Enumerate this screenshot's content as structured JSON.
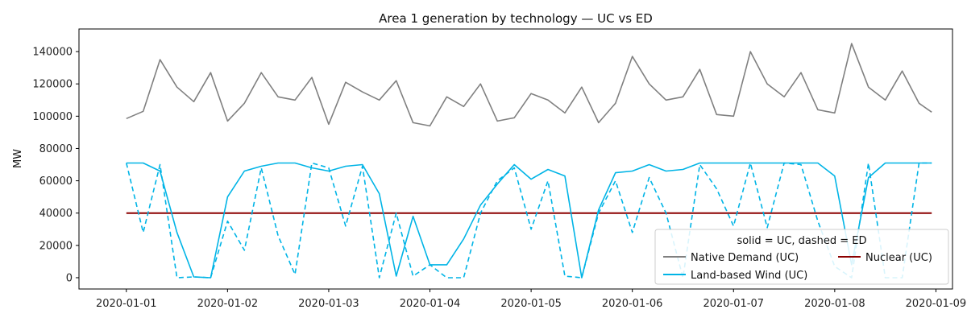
{
  "chart_data": {
    "type": "line",
    "title": "Area 1 generation by technology — UC vs ED",
    "xlabel": "",
    "ylabel": "MW",
    "ylim": [
      -7000,
      154000
    ],
    "xlim": [
      "2020-01-01",
      "2020-01-09"
    ],
    "yticks": [
      0,
      20000,
      40000,
      60000,
      80000,
      100000,
      120000,
      140000
    ],
    "yticklabels": [
      "0",
      "20000",
      "40000",
      "60000",
      "80000",
      "100000",
      "120000",
      "140000"
    ],
    "xticks": [
      "2020-01-01",
      "2020-01-02",
      "2020-01-03",
      "2020-01-04",
      "2020-01-05",
      "2020-01-06",
      "2020-01-07",
      "2020-01-08",
      "2020-01-09"
    ],
    "grid": false,
    "legend": {
      "title": "solid = UC, dashed = ED",
      "placement": "lower-right",
      "entries": [
        "Native Demand (UC)",
        "Nuclear (UC)",
        "Land-based Wind (UC)"
      ]
    },
    "x": [
      "2020-01-01 00:00",
      "2020-01-01 04:00",
      "2020-01-01 08:00",
      "2020-01-01 12:00",
      "2020-01-01 16:00",
      "2020-01-01 20:00",
      "2020-01-02 00:00",
      "2020-01-02 04:00",
      "2020-01-02 08:00",
      "2020-01-02 12:00",
      "2020-01-02 16:00",
      "2020-01-02 20:00",
      "2020-01-03 00:00",
      "2020-01-03 04:00",
      "2020-01-03 08:00",
      "2020-01-03 12:00",
      "2020-01-03 16:00",
      "2020-01-03 20:00",
      "2020-01-04 00:00",
      "2020-01-04 04:00",
      "2020-01-04 08:00",
      "2020-01-04 12:00",
      "2020-01-04 16:00",
      "2020-01-04 20:00",
      "2020-01-05 00:00",
      "2020-01-05 04:00",
      "2020-01-05 08:00",
      "2020-01-05 12:00",
      "2020-01-05 16:00",
      "2020-01-05 20:00",
      "2020-01-06 00:00",
      "2020-01-06 04:00",
      "2020-01-06 08:00",
      "2020-01-06 12:00",
      "2020-01-06 16:00",
      "2020-01-06 20:00",
      "2020-01-07 00:00",
      "2020-01-07 04:00",
      "2020-01-07 08:00",
      "2020-01-07 12:00",
      "2020-01-07 16:00",
      "2020-01-07 20:00",
      "2020-01-08 00:00",
      "2020-01-08 04:00",
      "2020-01-08 08:00",
      "2020-01-08 12:00",
      "2020-01-08 16:00",
      "2020-01-08 20:00",
      "2020-01-08 23:00"
    ],
    "series": [
      {
        "name": "Native Demand (UC)",
        "color": "#808080",
        "dash": "solid",
        "values": [
          98500,
          103000,
          135000,
          118000,
          109000,
          127000,
          97000,
          108000,
          127000,
          112000,
          110000,
          124000,
          95000,
          121000,
          115000,
          110000,
          122000,
          96000,
          94000,
          112000,
          106000,
          120000,
          97000,
          99000,
          114000,
          110000,
          102000,
          118000,
          96000,
          108000,
          137000,
          120000,
          110000,
          112000,
          129000,
          101000,
          100000,
          140000,
          120000,
          112000,
          127000,
          104000,
          102000,
          145000,
          118000,
          110000,
          128000,
          108000,
          102500
        ]
      },
      {
        "name": "Nuclear (UC)",
        "color": "#8b0000",
        "dash": "solid",
        "values": [
          40000,
          40000,
          40000,
          40000,
          40000,
          40000,
          40000,
          40000,
          40000,
          40000,
          40000,
          40000,
          40000,
          40000,
          40000,
          40000,
          40000,
          40000,
          40000,
          40000,
          40000,
          40000,
          40000,
          40000,
          40000,
          40000,
          40000,
          40000,
          40000,
          40000,
          40000,
          40000,
          40000,
          40000,
          40000,
          40000,
          40000,
          40000,
          40000,
          40000,
          40000,
          40000,
          40000,
          40000,
          40000,
          40000,
          40000,
          40000,
          40000
        ]
      },
      {
        "name": "Land-based Wind (UC)",
        "color": "#00b4e6",
        "dash": "solid",
        "values": [
          71000,
          71000,
          66000,
          28000,
          500,
          0,
          50000,
          66000,
          69000,
          71000,
          71000,
          68000,
          66000,
          69000,
          70000,
          52000,
          1000,
          38000,
          8000,
          8000,
          24000,
          45000,
          58000,
          70000,
          61000,
          67000,
          63000,
          0,
          42000,
          65000,
          66000,
          70000,
          66000,
          67000,
          71000,
          71000,
          71000,
          71000,
          71000,
          71000,
          71000,
          71000,
          63000,
          8000,
          62000,
          71000,
          71000,
          71000,
          71000
        ]
      },
      {
        "name": "",
        "color": "#00b4e6",
        "dash": "dashed",
        "values": [
          71000,
          28000,
          70000,
          0,
          500,
          0,
          35000,
          17000,
          68000,
          26000,
          2000,
          71000,
          68000,
          32000,
          69000,
          0,
          40000,
          1000,
          8000,
          0,
          0,
          40000,
          60000,
          68000,
          30000,
          60000,
          1000,
          0,
          40000,
          60000,
          28000,
          62000,
          40000,
          0,
          70000,
          55000,
          32000,
          71000,
          31000,
          71000,
          70000,
          35000,
          7000,
          0,
          71000,
          0,
          0,
          71000,
          71000
        ]
      }
    ]
  }
}
